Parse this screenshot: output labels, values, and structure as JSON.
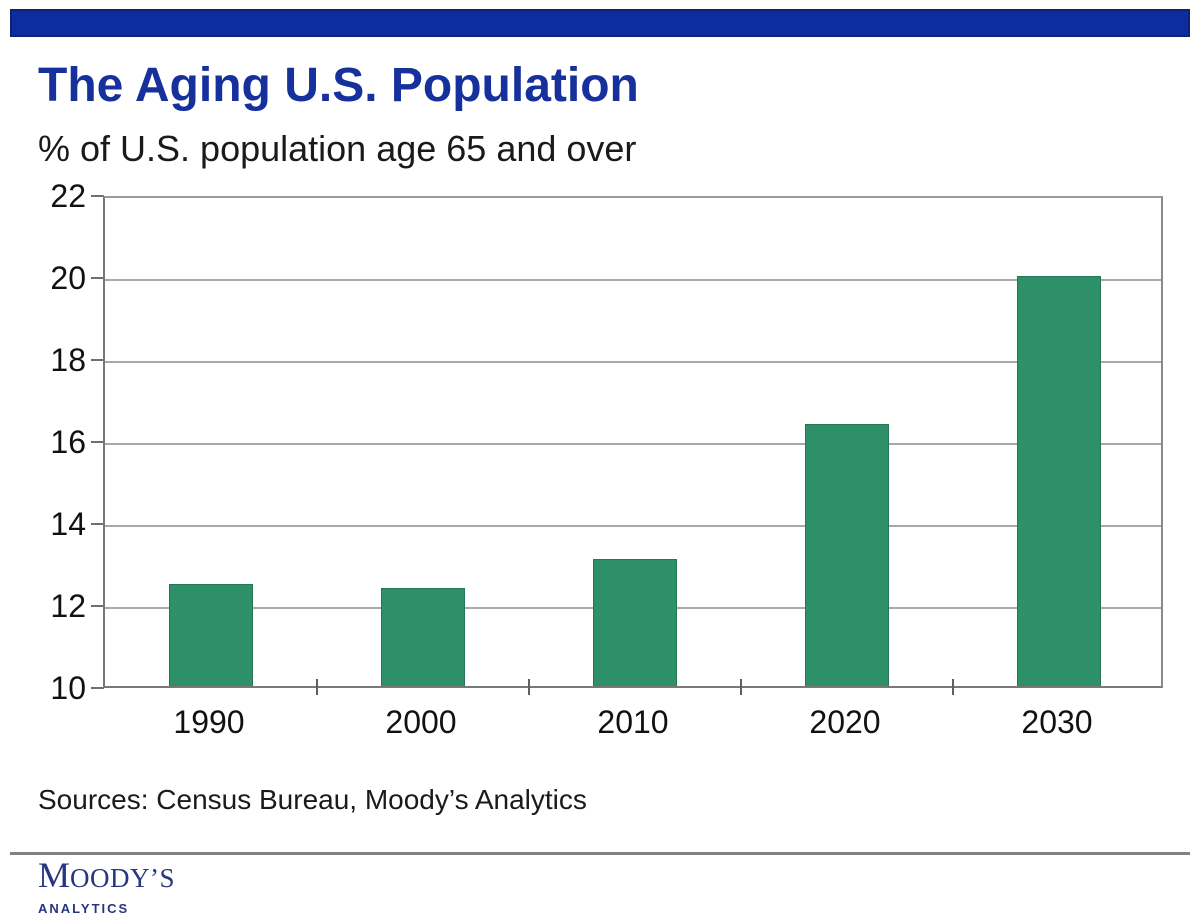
{
  "header": {
    "title": "The Aging U.S. Population",
    "subtitle": "% of U.S. population age 65 and over"
  },
  "chart_data": {
    "type": "bar",
    "title": "The Aging U.S. Population",
    "subtitle": "% of U.S. population age 65 and over",
    "categories": [
      "1990",
      "2000",
      "2010",
      "2020",
      "2030"
    ],
    "values": [
      12.5,
      12.4,
      13.1,
      16.4,
      20.0
    ],
    "xlabel": "",
    "ylabel": "% of U.S. population age 65 and over",
    "ylim": [
      10,
      22
    ],
    "yticks": [
      10,
      12,
      14,
      16,
      18,
      20,
      22
    ],
    "grid": "horizontal",
    "legend": "none",
    "bar_color": "#2e9068"
  },
  "footer": {
    "sources": "Sources: Census Bureau, Moody’s Analytics",
    "logo": {
      "brand_initial": "M",
      "brand_rest": "OODY’S",
      "division": "ANALYTICS"
    }
  },
  "colors": {
    "top_bar_blue": "#0b2da0",
    "top_bar_border": "#161f6e",
    "title_blue": "#16309c",
    "bar_green": "#2e9068",
    "logo_navy": "#26367f",
    "gridline_gray": "#a8a8a8"
  }
}
